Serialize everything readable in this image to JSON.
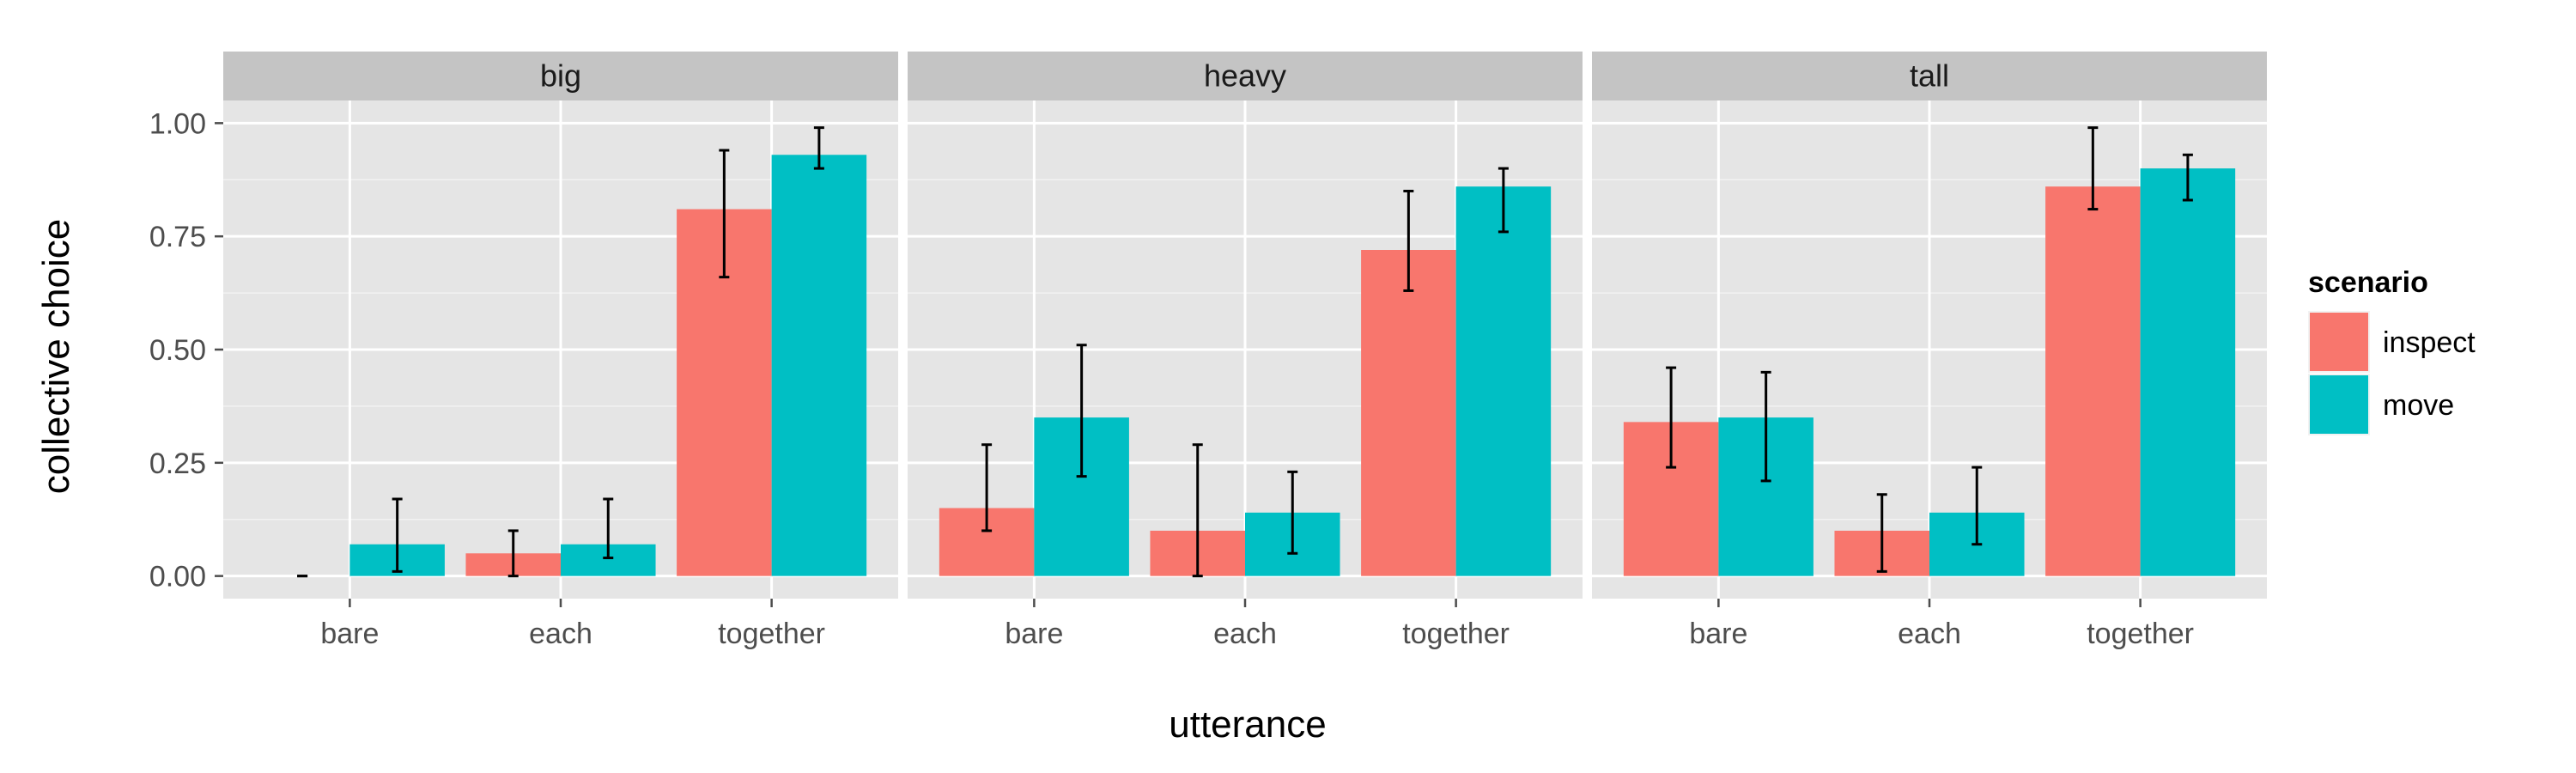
{
  "chart_data": {
    "type": "bar",
    "facets": [
      "big",
      "heavy",
      "tall"
    ],
    "categories": [
      "bare",
      "each",
      "together"
    ],
    "xlabel": "utterance",
    "ylabel": "collective choice",
    "ylim": [
      -0.05,
      1.05
    ],
    "yticks": [
      0.0,
      0.25,
      0.5,
      0.75,
      1.0
    ],
    "ytick_labels": [
      "0.00",
      "0.25",
      "0.50",
      "0.75",
      "1.00"
    ],
    "grid": true,
    "legend": {
      "title": "scenario",
      "placement": "right",
      "entries": [
        {
          "name": "inspect",
          "color": "#F8766D"
        },
        {
          "name": "move",
          "color": "#00BFC4"
        }
      ]
    },
    "series": [
      {
        "name": "inspect",
        "color": "#F8766D",
        "values": {
          "big": [
            0.0,
            0.05,
            0.81
          ],
          "heavy": [
            0.15,
            0.1,
            0.72
          ],
          "tall": [
            0.34,
            0.1,
            0.86
          ]
        },
        "error_low": {
          "big": [
            0.0,
            0.0,
            0.66
          ],
          "heavy": [
            0.1,
            0.0,
            0.63
          ],
          "tall": [
            0.24,
            0.01,
            0.81
          ]
        },
        "error_high": {
          "big": [
            0.0,
            0.1,
            0.94
          ],
          "heavy": [
            0.29,
            0.29,
            0.85
          ],
          "tall": [
            0.46,
            0.18,
            0.99
          ]
        }
      },
      {
        "name": "move",
        "color": "#00BFC4",
        "values": {
          "big": [
            0.07,
            0.07,
            0.93
          ],
          "heavy": [
            0.35,
            0.14,
            0.86
          ],
          "tall": [
            0.35,
            0.14,
            0.9
          ]
        },
        "error_low": {
          "big": [
            0.01,
            0.04,
            0.9
          ],
          "heavy": [
            0.22,
            0.05,
            0.76
          ],
          "tall": [
            0.21,
            0.07,
            0.83
          ]
        },
        "error_high": {
          "big": [
            0.17,
            0.17,
            0.99
          ],
          "heavy": [
            0.51,
            0.23,
            0.9
          ],
          "tall": [
            0.45,
            0.24,
            0.93
          ]
        }
      }
    ]
  }
}
